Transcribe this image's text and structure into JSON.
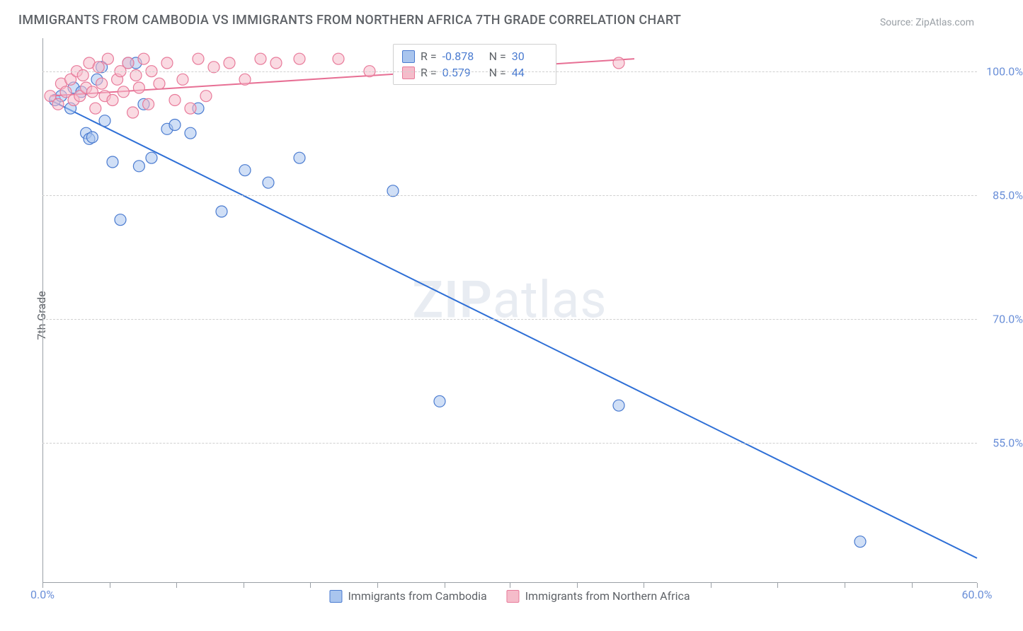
{
  "title": "IMMIGRANTS FROM CAMBODIA VS IMMIGRANTS FROM NORTHERN AFRICA 7TH GRADE CORRELATION CHART",
  "source": "Source: ZipAtlas.com",
  "watermark_a": "ZIP",
  "watermark_b": "atlas",
  "ylabel": "7th Grade",
  "chart": {
    "type": "scatter",
    "background_color": "#ffffff",
    "grid_color": "#d0d0d0",
    "grid_dash": "4 4",
    "axis_color": "#9aa0a6",
    "text_color": "#5f6368",
    "tick_label_color": "#6a8fd8",
    "xlim": [
      0,
      60
    ],
    "ylim": [
      38,
      104
    ],
    "x_ticks_minor": [
      0,
      4.3,
      8.6,
      12.9,
      17.2,
      21.5,
      25.8,
      30,
      34.3,
      38.6,
      42.9,
      47.2,
      51.5,
      55.8,
      60
    ],
    "x_ticks_label": [
      {
        "pos": 0,
        "label": "0.0%"
      },
      {
        "pos": 60,
        "label": "60.0%"
      }
    ],
    "y_ticks": [
      {
        "pos": 100,
        "label": "100.0%"
      },
      {
        "pos": 85,
        "label": "85.0%"
      },
      {
        "pos": 70,
        "label": "70.0%"
      },
      {
        "pos": 55,
        "label": "55.0%"
      }
    ],
    "marker_radius": 8,
    "marker_opacity": 0.55,
    "line_width": 2,
    "series": [
      {
        "name": "Immigrants from Cambodia",
        "fill": "#a9c5ee",
        "stroke": "#4a7bd0",
        "line_color": "#2e6fd6",
        "stats": {
          "R_label": "R =",
          "R": "-0.878",
          "N_label": "N =",
          "N": "30"
        },
        "trend": {
          "x1": 0.5,
          "y1": 96.5,
          "x2": 60,
          "y2": 41
        },
        "points": [
          [
            0.8,
            96.5
          ],
          [
            1.2,
            97.0
          ],
          [
            1.8,
            95.5
          ],
          [
            2.0,
            98.0
          ],
          [
            2.5,
            97.5
          ],
          [
            2.8,
            92.5
          ],
          [
            3.0,
            91.8
          ],
          [
            3.2,
            92.0
          ],
          [
            3.5,
            99.0
          ],
          [
            4.0,
            94.0
          ],
          [
            4.5,
            89.0
          ],
          [
            5.0,
            82.0
          ],
          [
            5.5,
            101.0
          ],
          [
            6.2,
            88.5
          ],
          [
            6.5,
            96.0
          ],
          [
            7.0,
            89.5
          ],
          [
            8.0,
            93.0
          ],
          [
            8.5,
            93.5
          ],
          [
            9.5,
            92.5
          ],
          [
            10.0,
            95.5
          ],
          [
            11.5,
            83.0
          ],
          [
            13.0,
            88.0
          ],
          [
            14.5,
            86.5
          ],
          [
            16.5,
            89.5
          ],
          [
            22.5,
            85.5
          ],
          [
            25.5,
            60.0
          ],
          [
            37.0,
            59.5
          ],
          [
            52.5,
            43.0
          ],
          [
            3.8,
            100.5
          ],
          [
            6.0,
            101.0
          ]
        ]
      },
      {
        "name": "Immigrants from Northern Africa",
        "fill": "#f5bcca",
        "stroke": "#e87a9a",
        "line_color": "#e76f94",
        "stats": {
          "R_label": "R =",
          "R": "0.579",
          "N_label": "N =",
          "N": "44"
        },
        "trend": {
          "x1": 0.5,
          "y1": 97.0,
          "x2": 38,
          "y2": 101.5
        },
        "points": [
          [
            0.5,
            97.0
          ],
          [
            1.0,
            96.0
          ],
          [
            1.2,
            98.5
          ],
          [
            1.5,
            97.5
          ],
          [
            1.8,
            99.0
          ],
          [
            2.0,
            96.5
          ],
          [
            2.2,
            100.0
          ],
          [
            2.4,
            97.0
          ],
          [
            2.6,
            99.5
          ],
          [
            2.8,
            98.0
          ],
          [
            3.0,
            101.0
          ],
          [
            3.2,
            97.5
          ],
          [
            3.4,
            95.5
          ],
          [
            3.6,
            100.5
          ],
          [
            3.8,
            98.5
          ],
          [
            4.0,
            97.0
          ],
          [
            4.2,
            101.5
          ],
          [
            4.5,
            96.5
          ],
          [
            4.8,
            99.0
          ],
          [
            5.0,
            100.0
          ],
          [
            5.2,
            97.5
          ],
          [
            5.5,
            101.0
          ],
          [
            5.8,
            95.0
          ],
          [
            6.0,
            99.5
          ],
          [
            6.2,
            98.0
          ],
          [
            6.5,
            101.5
          ],
          [
            6.8,
            96.0
          ],
          [
            7.0,
            100.0
          ],
          [
            7.5,
            98.5
          ],
          [
            8.0,
            101.0
          ],
          [
            8.5,
            96.5
          ],
          [
            9.0,
            99.0
          ],
          [
            9.5,
            95.5
          ],
          [
            10.0,
            101.5
          ],
          [
            10.5,
            97.0
          ],
          [
            11.0,
            100.5
          ],
          [
            12.0,
            101.0
          ],
          [
            13.0,
            99.0
          ],
          [
            14.0,
            101.5
          ],
          [
            15.0,
            101.0
          ],
          [
            16.5,
            101.5
          ],
          [
            19.0,
            101.5
          ],
          [
            21.0,
            100.0
          ],
          [
            37.0,
            101.0
          ]
        ]
      }
    ],
    "legend_bottom": [
      {
        "swatch_fill": "#a9c5ee",
        "swatch_stroke": "#4a7bd0",
        "label": "Immigrants from Cambodia"
      },
      {
        "swatch_fill": "#f5bcca",
        "swatch_stroke": "#e87a9a",
        "label": "Immigrants from Northern Africa"
      }
    ]
  }
}
